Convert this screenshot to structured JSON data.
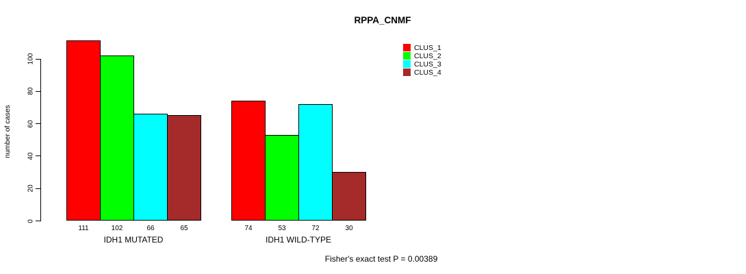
{
  "chart_data": {
    "type": "bar",
    "title": "RPPA_CNMF",
    "xlabel": "",
    "ylabel": "number of cases",
    "ylim": [
      0,
      115
    ],
    "yticks": [
      0,
      20,
      40,
      60,
      80,
      100
    ],
    "grid": false,
    "legend_position": "top-right",
    "categories": [
      "IDH1 MUTATED",
      "IDH1 WILD-TYPE"
    ],
    "series": [
      {
        "name": "CLUS_1",
        "color": "#ff0000",
        "values": [
          111,
          74
        ]
      },
      {
        "name": "CLUS_2",
        "color": "#00ff00",
        "values": [
          102,
          53
        ]
      },
      {
        "name": "CLUS_3",
        "color": "#00ffff",
        "values": [
          66,
          72
        ]
      },
      {
        "name": "CLUS_4",
        "color": "#a52a2a",
        "values": [
          65,
          30
        ]
      }
    ],
    "bar_value_labels": [
      [
        111,
        102,
        66,
        65
      ],
      [
        74,
        53,
        72,
        30
      ]
    ],
    "annotation": "Fisher's exact test P = 0.00389"
  }
}
